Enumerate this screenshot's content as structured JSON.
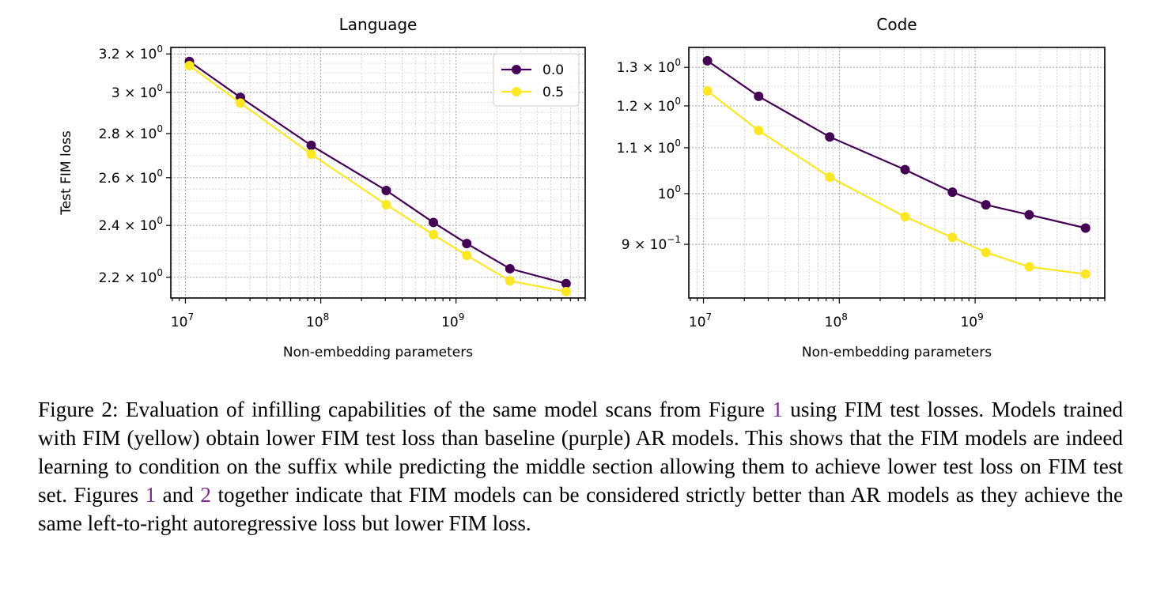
{
  "chart_data": [
    {
      "type": "line",
      "title": "Language",
      "xlabel": "Non-embedding parameters",
      "ylabel": "Test FIM loss",
      "xscale": "log",
      "yscale": "log",
      "xlim": [
        7800000.0,
        9000000000.0
      ],
      "ylim": [
        2.125,
        3.235
      ],
      "grid": true,
      "legend_position": "upper-right",
      "x_ticks": [
        {
          "value": 10000000.0,
          "base": "10",
          "exp": "7"
        },
        {
          "value": 100000000.0,
          "base": "10",
          "exp": "8"
        },
        {
          "value": 1000000000.0,
          "base": "10",
          "exp": "9"
        }
      ],
      "y_ticks": [
        {
          "value": 3.2,
          "mant": "3.2 × 10",
          "exp": "0"
        },
        {
          "value": 3.0,
          "mant": "3 × 10",
          "exp": "0"
        },
        {
          "value": 2.8,
          "mant": "2.8 × 10",
          "exp": "0"
        },
        {
          "value": 2.6,
          "mant": "2.6 × 10",
          "exp": "0"
        },
        {
          "value": 2.4,
          "mant": "2.4 × 10",
          "exp": "0"
        },
        {
          "value": 2.2,
          "mant": "2.2 × 10",
          "exp": "0"
        }
      ],
      "series": [
        {
          "name": "0.0",
          "color": "#440154",
          "x": [
            10700000.0,
            25500000.0,
            85000000.0,
            305000000.0,
            680000000.0,
            1200000000.0,
            2500000000.0,
            6500000000.0
          ],
          "y": [
            3.16,
            2.975,
            2.745,
            2.545,
            2.412,
            2.328,
            2.232,
            2.177
          ]
        },
        {
          "name": "0.5",
          "color": "#fde725",
          "x": [
            10700000.0,
            25500000.0,
            85000000.0,
            305000000.0,
            680000000.0,
            1200000000.0,
            2500000000.0,
            6500000000.0
          ],
          "y": [
            3.138,
            2.947,
            2.705,
            2.485,
            2.363,
            2.282,
            2.187,
            2.148
          ]
        }
      ]
    },
    {
      "type": "line",
      "title": "Code",
      "xlabel": "Non-embedding parameters",
      "ylabel": "",
      "xscale": "log",
      "yscale": "log",
      "xlim": [
        7800000.0,
        9000000000.0
      ],
      "ylim": [
        0.805,
        1.355
      ],
      "grid": true,
      "x_ticks": [
        {
          "value": 10000000.0,
          "base": "10",
          "exp": "7"
        },
        {
          "value": 100000000.0,
          "base": "10",
          "exp": "8"
        },
        {
          "value": 1000000000.0,
          "base": "10",
          "exp": "9"
        }
      ],
      "y_ticks": [
        {
          "value": 1.3,
          "mant": "1.3 × 10",
          "exp": "0"
        },
        {
          "value": 1.2,
          "mant": "1.2 × 10",
          "exp": "0"
        },
        {
          "value": 1.1,
          "mant": "1.1 × 10",
          "exp": "0"
        },
        {
          "value": 1.0,
          "mant": "10",
          "exp": "0"
        },
        {
          "value": 0.9,
          "mant": "9 × 10",
          "exp": "−1"
        }
      ],
      "series": [
        {
          "name": "0.0",
          "color": "#440154",
          "x": [
            10700000.0,
            25500000.0,
            85000000.0,
            305000000.0,
            680000000.0,
            1200000000.0,
            2500000000.0,
            6500000000.0
          ],
          "y": [
            1.318,
            1.224,
            1.125,
            1.051,
            1.003,
            0.977,
            0.957,
            0.931
          ]
        },
        {
          "name": "0.5",
          "color": "#fde725",
          "x": [
            10700000.0,
            25500000.0,
            85000000.0,
            305000000.0,
            680000000.0,
            1200000000.0,
            2500000000.0,
            6500000000.0
          ],
          "y": [
            1.238,
            1.14,
            1.035,
            0.953,
            0.913,
            0.885,
            0.859,
            0.846
          ]
        }
      ]
    }
  ],
  "caption": {
    "p1": "Figure 2: Evaluation of infilling capabilities of the same model scans from Figure ",
    "ref1": "1",
    "p2": " using FIM test losses. Models trained with FIM (yellow) obtain lower FIM test loss than baseline (purple) AR models. This shows that the FIM models are indeed learning to condition on the suffix while predicting the middle section allowing them to achieve lower test loss on FIM test set. Figures ",
    "ref2": "1",
    "p3": " and ",
    "ref3": "2",
    "p4": " together indicate that FIM models can be considered strictly better than AR models as they achieve the same left-to-right autoregressive loss but lower FIM loss."
  }
}
